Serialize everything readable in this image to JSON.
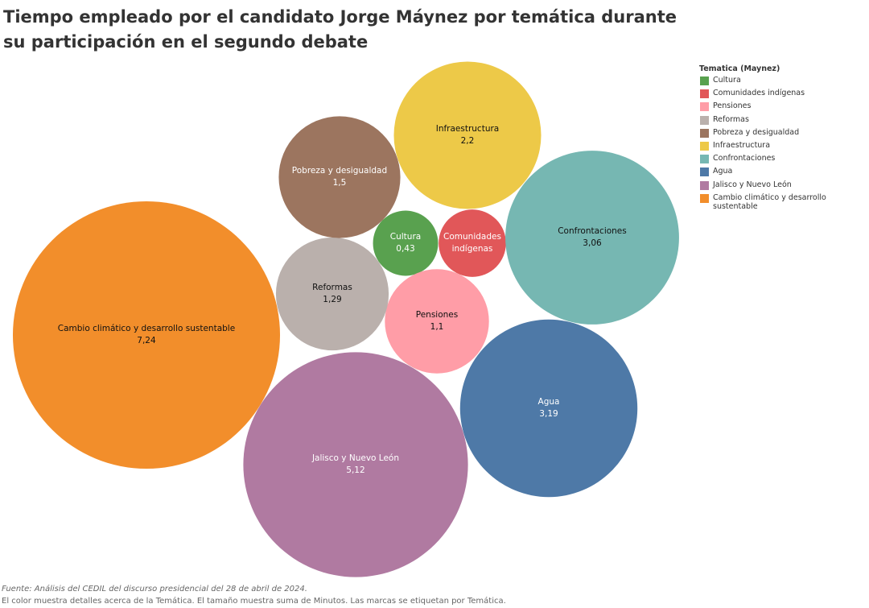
{
  "chart_data": {
    "type": "packed-bubble",
    "title": "Tiempo empleado por el candidato Jorge Máynez por temática durante su participación en el segundo debate",
    "legend_title": "Tematica (Maynez)",
    "legend_position": "top-right",
    "categories": [
      "Cultura",
      "Comunidades indígenas",
      "Pensiones",
      "Reformas",
      "Pobreza y desigualdad",
      "Infraestructura",
      "Confrontaciones",
      "Agua",
      "Jalisco y Nuevo León",
      "Cambio climático y desarrollo sustentable"
    ],
    "values": [
      0.43,
      0.46,
      1.1,
      1.29,
      1.5,
      2.2,
      3.06,
      3.19,
      5.12,
      7.24
    ],
    "value_labels": [
      "0,43",
      null,
      "1,1",
      "1,29",
      "1,5",
      "2,2",
      "3,06",
      "3,19",
      "5,12",
      "7,24"
    ],
    "colors": [
      "#59a14f",
      "#e15759",
      "#ff9da7",
      "#bab0ac",
      "#9c755f",
      "#edc948",
      "#76b7b2",
      "#4e79a7",
      "#b07aa1",
      "#f28e2b"
    ],
    "source": "Fuente: Análisis del CEDIL del discurso presidencial del 28 de abril de 2024.",
    "note": "El color muestra detalles acerca de la Temática.  El tamaño muestra suma de Minutos.  Las marcas se etiquetan por Temática."
  }
}
